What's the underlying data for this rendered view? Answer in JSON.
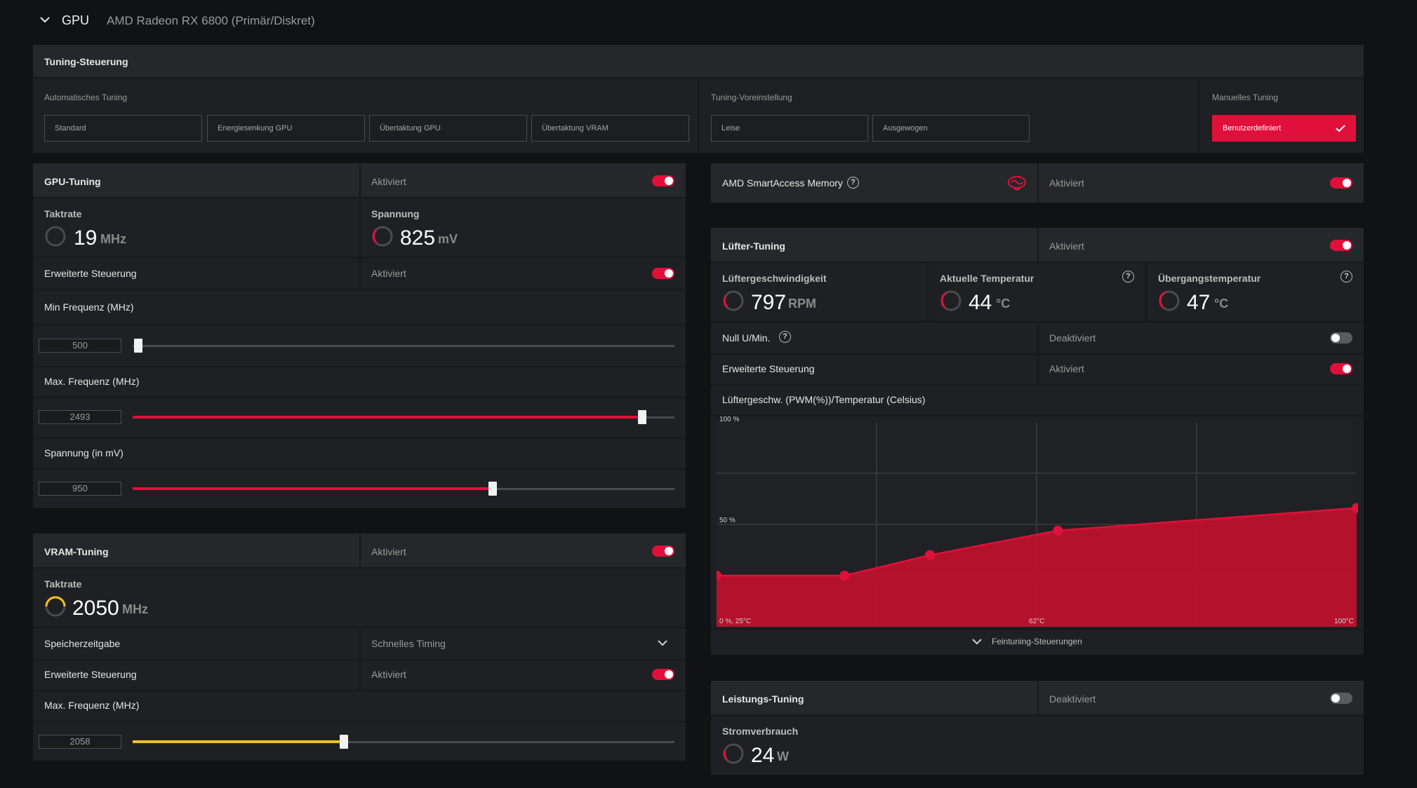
{
  "header": {
    "section": "GPU",
    "device": "AMD Radeon RX 6800 (Primär/Diskret)"
  },
  "tuning_control": {
    "title": "Tuning-Steuerung",
    "auto_label": "Automatisches Tuning",
    "auto_buttons": [
      "Standard",
      "Energiesenkung GPU",
      "Übertaktung GPU",
      "Übertaktung VRAM"
    ],
    "preset_label": "Tuning-Voreinstellung",
    "preset_buttons": [
      "Leise",
      "Ausgewogen"
    ],
    "manual_label": "Manuelles Tuning",
    "manual_button": "Benutzerdefiniert"
  },
  "gpu_tuning": {
    "title": "GPU-Tuning",
    "status": "Aktiviert",
    "enabled": true,
    "clock_label": "Taktrate",
    "clock_value": "19",
    "clock_unit": "MHz",
    "voltage_label": "Spannung",
    "voltage_value": "825",
    "voltage_unit": "mV",
    "advanced_label": "Erweiterte Steuerung",
    "advanced_status": "Aktiviert",
    "advanced_enabled": true,
    "min_freq_label": "Min Frequenz (MHz)",
    "min_freq_value": "500",
    "min_freq_fraction": 0.01,
    "max_freq_label": "Max. Frequenz (MHz)",
    "max_freq_value": "2493",
    "max_freq_fraction": 0.94,
    "voltage_ctrl_label": "Spannung (in mV)",
    "voltage_ctrl_value": "950",
    "voltage_ctrl_fraction": 0.665
  },
  "vram_tuning": {
    "title": "VRAM-Tuning",
    "status": "Aktiviert",
    "enabled": true,
    "clock_label": "Taktrate",
    "clock_value": "2050",
    "clock_unit": "MHz",
    "timing_label": "Speicherzeitgabe",
    "timing_value": "Schnelles Timing",
    "advanced_label": "Erweiterte Steuerung",
    "advanced_status": "Aktiviert",
    "advanced_enabled": true,
    "max_freq_label": "Max. Frequenz (MHz)",
    "max_freq_value": "2058",
    "max_freq_fraction": 0.39
  },
  "smart_access": {
    "title": "AMD SmartAccess Memory",
    "status": "Aktiviert",
    "enabled": true
  },
  "fan_tuning": {
    "title": "Lüfter-Tuning",
    "status": "Aktiviert",
    "enabled": true,
    "speed_label": "Lüftergeschwindigkeit",
    "speed_value": "797",
    "speed_unit": "RPM",
    "temp_label": "Aktuelle Temperatur",
    "temp_value": "44",
    "temp_unit": "°C",
    "junction_label": "Übergangstemperatur",
    "junction_value": "47",
    "junction_unit": "°C",
    "zero_rpm_label": "Null U/Min.",
    "zero_rpm_status": "Deaktiviert",
    "zero_rpm_enabled": false,
    "advanced_label": "Erweiterte Steuerung",
    "advanced_status": "Aktiviert",
    "advanced_enabled": true,
    "curve_title": "Lüftergeschw. (PWM(%))/Temperatur (Celsius)",
    "fine_tuning_label": "Feintuning-Steuerungen"
  },
  "chart_data": {
    "type": "area",
    "xlabel": "",
    "ylabel": "",
    "tick_labels": {
      "y_top": "100 %",
      "y_mid": "50 %",
      "origin": "0 %, 25°C",
      "x_mid": "62°C",
      "x_end": "100°C"
    },
    "xlim": [
      25,
      100
    ],
    "ylim": [
      0,
      100
    ],
    "x": [
      25,
      40,
      50,
      65,
      100
    ],
    "y": [
      25,
      25,
      35,
      47,
      58
    ],
    "color": "#c8102e"
  },
  "power_tuning": {
    "title": "Leistungs-Tuning",
    "status": "Deaktiviert",
    "enabled": false,
    "power_label": "Stromverbrauch",
    "power_value": "24",
    "power_unit": "W"
  },
  "colors": {
    "accent": "#e0103a",
    "vram_accent": "#f2c21b",
    "panel": "#1f2023"
  }
}
